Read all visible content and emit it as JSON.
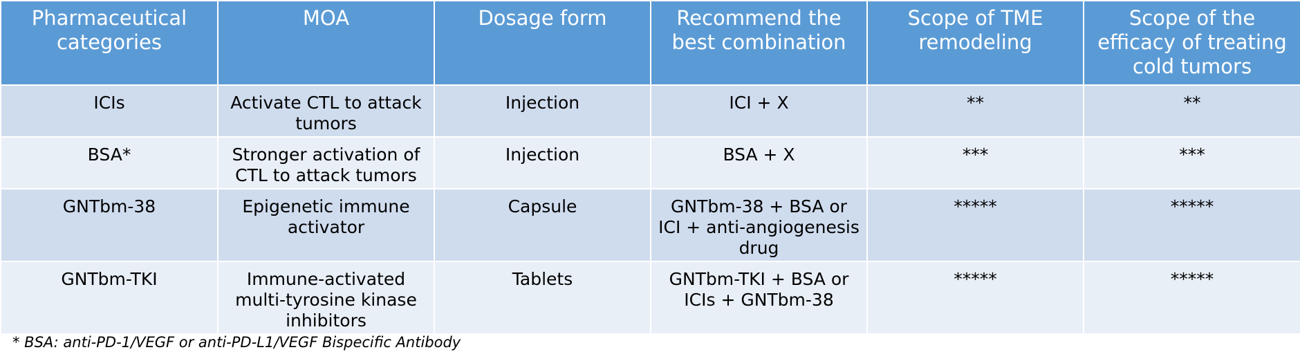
{
  "table": {
    "headers": [
      "Pharmaceutical categories",
      "MOA",
      "Dosage form",
      "Recommend the best combination",
      "Scope of TME remodeling",
      "Scope of the efficacy of treating cold tumors"
    ],
    "rows": [
      [
        "ICIs",
        "Activate CTL to attack tumors",
        "Injection",
        "ICI + X",
        "**",
        "**"
      ],
      [
        "BSA*",
        "Stronger activation of CTL to attack tumors",
        "Injection",
        "BSA + X",
        "***",
        "***"
      ],
      [
        "GNTbm-38",
        "Epigenetic immune activator",
        "Capsule",
        "GNTbm-38 + BSA or ICI + anti-angiogenesis drug",
        "*****",
        "*****"
      ],
      [
        "GNTbm-TKI",
        "Immune-activated multi-tyrosine kinase inhibitors",
        "Tablets",
        "GNTbm-TKI + BSA or ICIs + GNTbm-38",
        "*****",
        "*****"
      ]
    ]
  },
  "footnote": "* BSA:  anti-PD-1/VEGF or anti-PD-L1/VEGF Bispecific Antibody",
  "colors": {
    "header_bg": "#5b9bd5",
    "row_odd_bg": "#cfdcee",
    "row_even_bg": "#e9eff7"
  }
}
